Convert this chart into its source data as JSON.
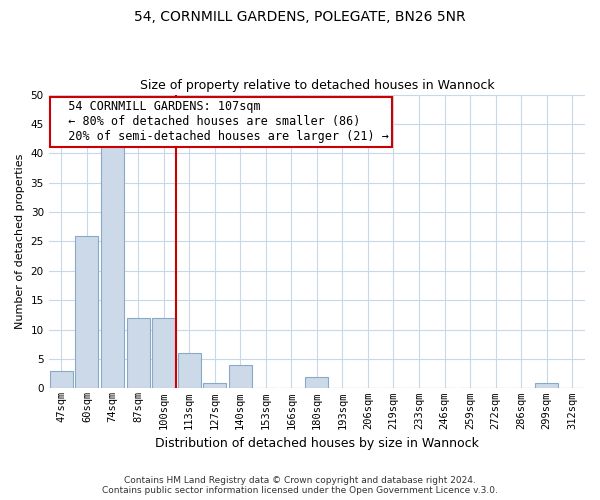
{
  "title": "54, CORNMILL GARDENS, POLEGATE, BN26 5NR",
  "subtitle": "Size of property relative to detached houses in Wannock",
  "xlabel": "Distribution of detached houses by size in Wannock",
  "ylabel": "Number of detached properties",
  "bar_labels": [
    "47sqm",
    "60sqm",
    "74sqm",
    "87sqm",
    "100sqm",
    "113sqm",
    "127sqm",
    "140sqm",
    "153sqm",
    "166sqm",
    "180sqm",
    "193sqm",
    "206sqm",
    "219sqm",
    "233sqm",
    "246sqm",
    "259sqm",
    "272sqm",
    "286sqm",
    "299sqm",
    "312sqm"
  ],
  "bar_values": [
    3,
    26,
    41,
    12,
    12,
    6,
    1,
    4,
    0,
    0,
    2,
    0,
    0,
    0,
    0,
    0,
    0,
    0,
    0,
    1,
    0
  ],
  "bar_color": "#ccd9e8",
  "bar_edgecolor": "#88aac8",
  "grid_color": "#c8d8e8",
  "vline_color": "#cc0000",
  "vline_x_index": 4.5,
  "annotation_title": "54 CORNMILL GARDENS: 107sqm",
  "annotation_line1": "← 80% of detached houses are smaller (86)",
  "annotation_line2": "20% of semi-detached houses are larger (21) →",
  "annotation_box_facecolor": "#ffffff",
  "annotation_box_edgecolor": "#cc0000",
  "ylim": [
    0,
    50
  ],
  "yticks": [
    0,
    5,
    10,
    15,
    20,
    25,
    30,
    35,
    40,
    45,
    50
  ],
  "footer1": "Contains HM Land Registry data © Crown copyright and database right 2024.",
  "footer2": "Contains public sector information licensed under the Open Government Licence v.3.0.",
  "title_fontsize": 10,
  "subtitle_fontsize": 9,
  "xlabel_fontsize": 9,
  "ylabel_fontsize": 8,
  "tick_fontsize": 7.5,
  "footer_fontsize": 6.5,
  "ann_fontsize": 8.5
}
